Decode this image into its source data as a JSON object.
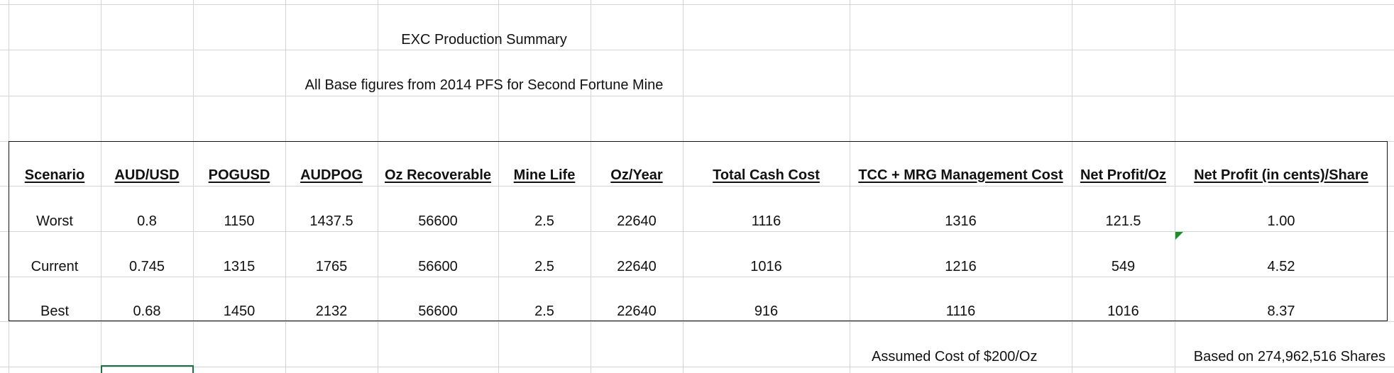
{
  "sheet": {
    "title": "EXC Production Summary",
    "subtitle": "All Base figures from 2014 PFS for Second Fortune Mine",
    "columns": [
      "Scenario",
      "AUD/USD",
      "POGUSD",
      "AUDPOG",
      "Oz Recoverable",
      "Mine Life",
      "Oz/Year",
      "Total Cash Cost",
      "TCC + MRG Management Cost",
      "Net Profit/Oz",
      "Net Profit (in cents)/Share"
    ],
    "rows": [
      [
        "Worst",
        "0.8",
        "1150",
        "1437.5",
        "56600",
        "2.5",
        "22640",
        "1116",
        "1316",
        "121.5",
        "1.00"
      ],
      [
        "Current",
        "0.745",
        "1315",
        "1765",
        "56600",
        "2.5",
        "22640",
        "1016",
        "1216",
        "549",
        "4.52"
      ],
      [
        "Best",
        "0.68",
        "1450",
        "2132",
        "56600",
        "2.5",
        "22640",
        "916",
        "1116",
        "1016",
        "8.37"
      ]
    ],
    "notes": {
      "assumed_cost": "Assumed Cost of $200/Oz",
      "shares": "Based on 274,962,516 Shares"
    }
  },
  "colors": {
    "gridline": "#d4d4d4",
    "border": "#111111",
    "selection": "#1e7145",
    "comment_marker": "#1f8b2c"
  }
}
